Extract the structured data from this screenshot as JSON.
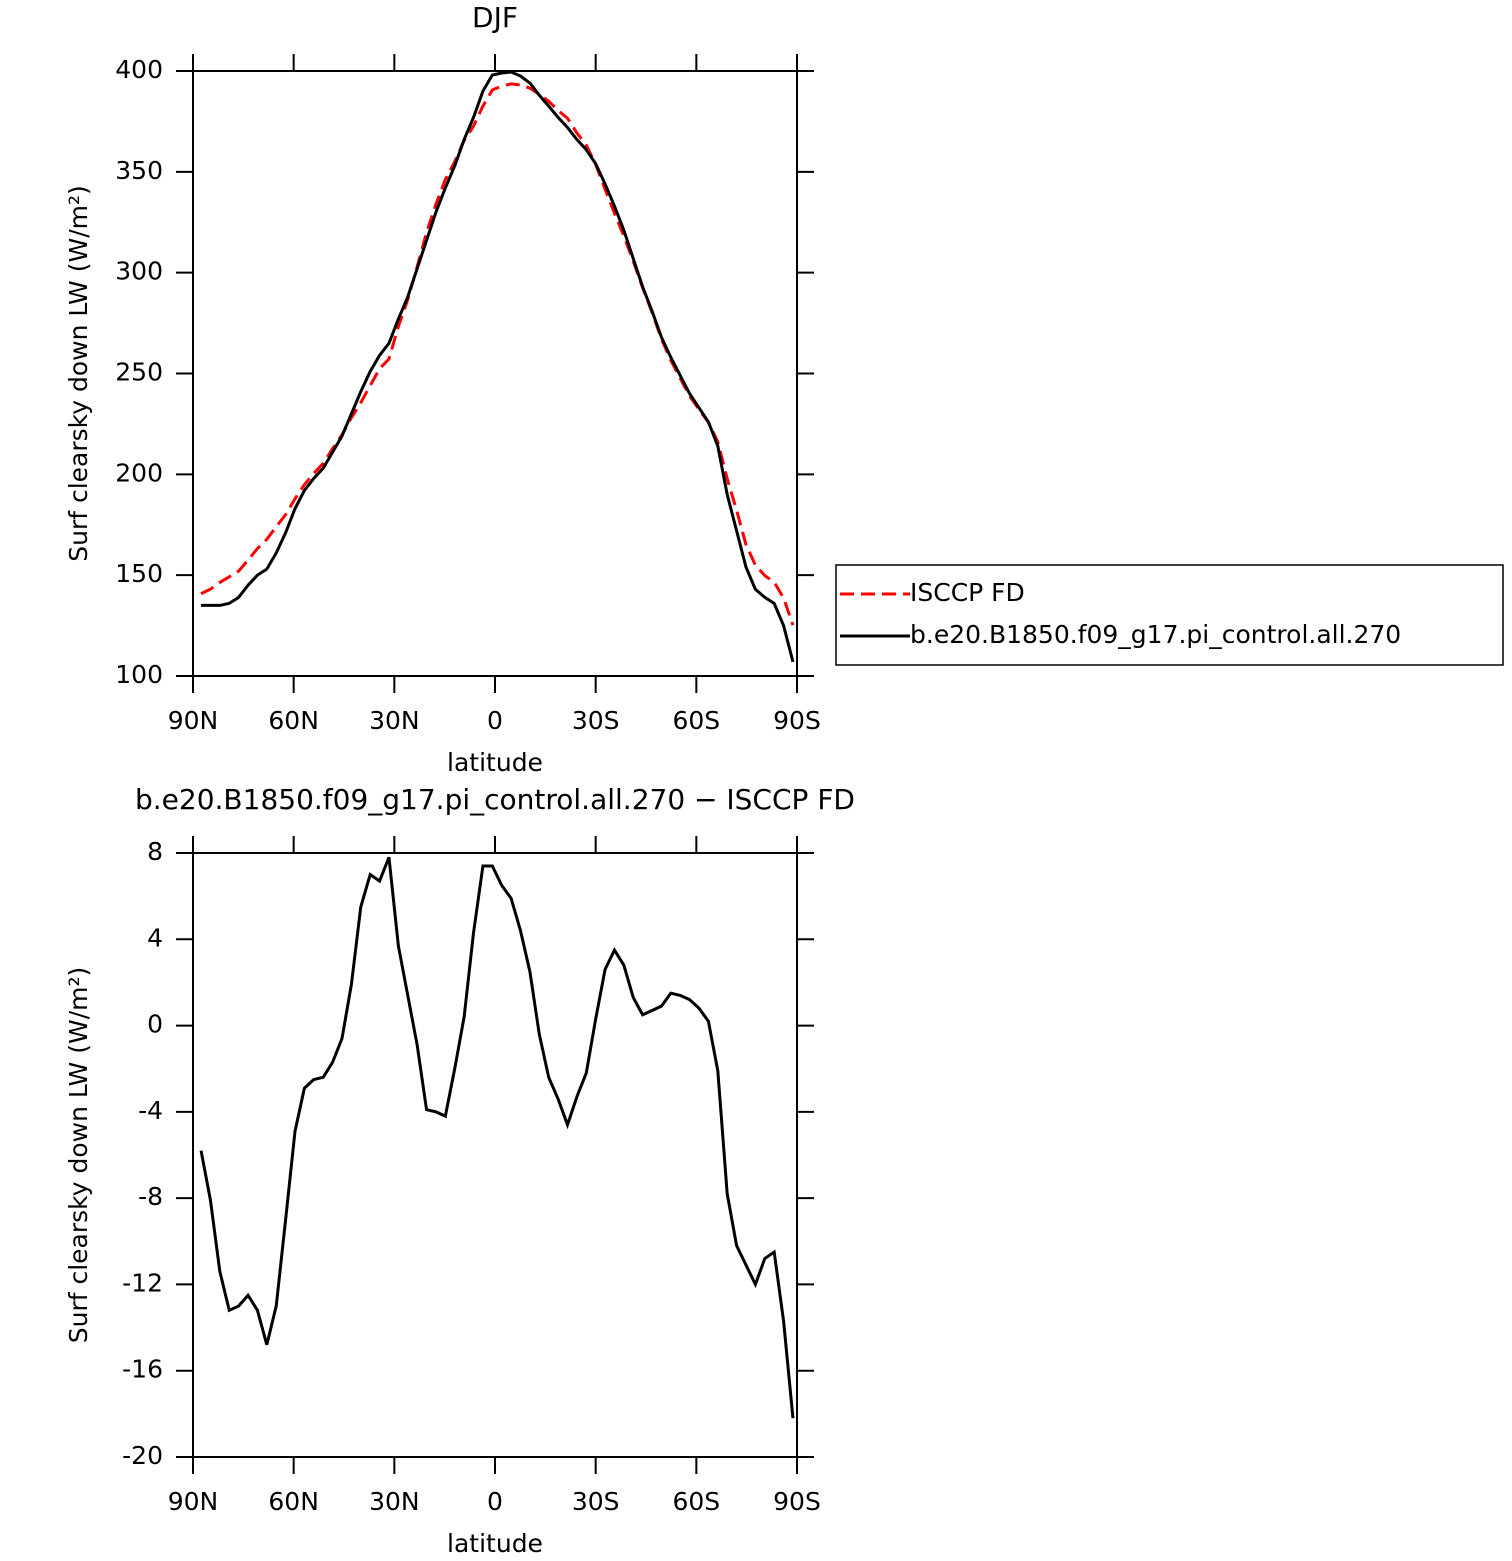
{
  "chart_data": [
    {
      "type": "line",
      "title": "DJF",
      "x_label": "latitude",
      "y_label": "Surf clearsky down LW (W/m²)",
      "xlim": [
        90,
        -90
      ],
      "ylim": [
        100,
        400
      ],
      "xticks": [
        {
          "value": 90,
          "label": "90N"
        },
        {
          "value": 60,
          "label": "60N"
        },
        {
          "value": 30,
          "label": "30N"
        },
        0,
        {
          "value": -30,
          "label": "30S"
        },
        {
          "value": -60,
          "label": "60S"
        },
        {
          "value": -90,
          "label": "90S"
        }
      ],
      "yticks": [
        100,
        150,
        200,
        250,
        300,
        350,
        400
      ],
      "legend": "right",
      "x": [
        87.6,
        84.8,
        82,
        79.2,
        76.4,
        73.6,
        70.8,
        68,
        65.2,
        62.4,
        59.6,
        56.8,
        54,
        51.2,
        48.4,
        45.6,
        42.8,
        40,
        37.2,
        34.4,
        31.6,
        28.8,
        26,
        23.2,
        20.4,
        17.6,
        14.8,
        12,
        9.2,
        6.4,
        3.6,
        0.8,
        -2,
        -4.8,
        -7.6,
        -10.4,
        -13.2,
        -16,
        -18.8,
        -21.6,
        -24.4,
        -27.2,
        -30,
        -32.8,
        -35.6,
        -38.4,
        -41.2,
        -44,
        -46.8,
        -49.6,
        -52.4,
        -55.2,
        -58,
        -60.8,
        -63.6,
        -66.4,
        -69.2,
        -72,
        -74.8,
        -77.6,
        -80.4,
        -83.2,
        -86,
        -88.8
      ],
      "series": [
        {
          "name": "ISCCP FD",
          "color": "#ff0000",
          "dash": true,
          "values": [
            140.8,
            143.1,
            146.4,
            149.2,
            152,
            157.5,
            163.2,
            167.8,
            174,
            180,
            187.9,
            194.9,
            200.5,
            205.4,
            212.7,
            219.6,
            228.1,
            235.5,
            244,
            252.3,
            257.2,
            273.3,
            286.6,
            302.9,
            319.9,
            334,
            346.2,
            355,
            365.6,
            372.7,
            382.6,
            390.6,
            392.5,
            393.6,
            393.1,
            391.5,
            388.4,
            385,
            380.4,
            376.6,
            369.3,
            363.2,
            353.7,
            341.4,
            329.5,
            318.2,
            305.7,
            292.5,
            280.3,
            267.1,
            256.5,
            247.6,
            238.8,
            232.2,
            225.8,
            216.1,
            197.8,
            182.2,
            165.1,
            155,
            149.8,
            146.5,
            138.7,
            125.2
          ]
        },
        {
          "name": "b.e20.B1850.f09_g17.pi_control.all.270",
          "color": "#000000",
          "dash": false,
          "values": [
            135,
            135,
            135,
            136,
            139,
            145,
            150,
            153,
            161,
            171,
            183,
            192,
            198,
            203,
            211,
            219,
            230,
            241,
            251,
            259,
            265,
            277,
            288,
            302,
            316,
            330,
            342,
            353,
            366,
            377,
            390,
            398,
            399,
            399.5,
            397.5,
            394,
            388,
            382.6,
            377,
            372,
            366,
            361,
            354,
            344,
            333,
            321,
            307,
            293,
            281,
            268,
            258,
            249,
            240,
            233,
            226,
            214,
            190,
            172,
            154,
            143,
            139,
            136,
            125,
            107
          ]
        }
      ]
    },
    {
      "type": "line",
      "title": "b.e20.B1850.f09_g17.pi_control.all.270 − ISCCP FD",
      "x_label": "latitude",
      "y_label": "Surf clearsky down LW (W/m²)",
      "xlim": [
        90,
        -90
      ],
      "ylim": [
        -20,
        8
      ],
      "xticks": [
        {
          "value": 90,
          "label": "90N"
        },
        {
          "value": 60,
          "label": "60N"
        },
        {
          "value": 30,
          "label": "30N"
        },
        0,
        {
          "value": -30,
          "label": "30S"
        },
        {
          "value": -60,
          "label": "60S"
        },
        {
          "value": -90,
          "label": "90S"
        }
      ],
      "yticks": [
        -20,
        -16,
        -12,
        -8,
        -4,
        0,
        4,
        8
      ],
      "x": [
        87.6,
        84.8,
        82,
        79.2,
        76.4,
        73.6,
        70.8,
        68,
        65.2,
        62.4,
        59.6,
        56.8,
        54,
        51.2,
        48.4,
        45.6,
        42.8,
        40,
        37.2,
        34.4,
        31.6,
        28.8,
        26,
        23.2,
        20.4,
        17.6,
        14.8,
        12,
        9.2,
        6.4,
        3.6,
        0.8,
        -2,
        -4.8,
        -7.6,
        -10.4,
        -13.2,
        -16,
        -18.8,
        -21.6,
        -24.4,
        -27.2,
        -30,
        -32.8,
        -35.6,
        -38.4,
        -41.2,
        -44,
        -46.8,
        -49.6,
        -52.4,
        -55.2,
        -58,
        -60.8,
        -63.6,
        -66.4,
        -69.2,
        -72,
        -74.8,
        -77.6,
        -80.4,
        -83.2,
        -86,
        -88.8
      ],
      "series": [
        {
          "color": "#000000",
          "dash": false,
          "values": [
            -5.8,
            -8.1,
            -11.4,
            -13.2,
            -13,
            -12.5,
            -13.2,
            -14.8,
            -13,
            -9,
            -4.9,
            -2.9,
            -2.5,
            -2.4,
            -1.7,
            -0.6,
            1.9,
            5.5,
            7,
            6.7,
            7.8,
            3.7,
            1.4,
            -0.9,
            -3.9,
            -4,
            -4.2,
            -2,
            0.4,
            4.3,
            7.4,
            7.4,
            6.5,
            5.9,
            4.4,
            2.5,
            -0.4,
            -2.4,
            -3.4,
            -4.6,
            -3.3,
            -2.2,
            0.3,
            2.6,
            3.5,
            2.8,
            1.3,
            0.5,
            0.7,
            0.9,
            1.5,
            1.4,
            1.2,
            0.8,
            0.2,
            -2.1,
            -7.8,
            -10.2,
            -11.1,
            -12,
            -10.8,
            -10.5,
            -13.7,
            -18.2
          ]
        }
      ]
    }
  ]
}
